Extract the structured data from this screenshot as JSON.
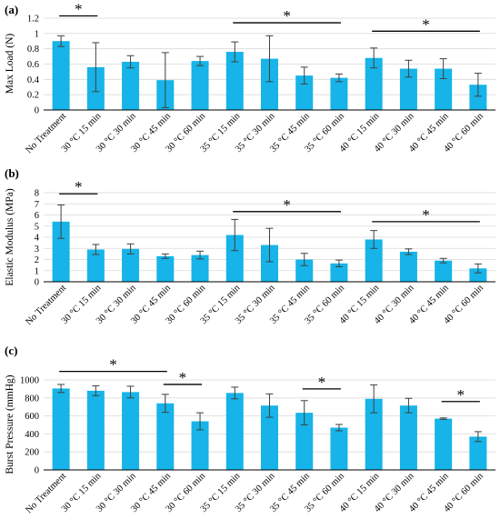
{
  "colors": {
    "bar": "#16b4e8",
    "axis": "#000000",
    "grid": "#d9d9d9",
    "error": "#404040"
  },
  "chart_data": [
    {
      "type": "bar",
      "panel_label": "(a)",
      "ylabel": "Max Load (N)",
      "categories": [
        "No Treatment",
        "30 °C 15 min",
        "30 °C 30 min",
        "30 °C 45 min",
        "30 °C 60 min",
        "35 °C 15 min",
        "35 °C 30 min",
        "35 °C 45 min",
        "35 °C 60 min",
        "40 °C 15 min",
        "40 °C 30 min",
        "40 °C 45 min",
        "40 °C 60 min"
      ],
      "values": [
        0.9,
        0.56,
        0.63,
        0.39,
        0.64,
        0.76,
        0.67,
        0.45,
        0.42,
        0.68,
        0.54,
        0.54,
        0.33
      ],
      "errors": [
        0.07,
        0.32,
        0.08,
        0.36,
        0.06,
        0.13,
        0.3,
        0.11,
        0.05,
        0.13,
        0.11,
        0.13,
        0.15
      ],
      "ylim": [
        0,
        1.2
      ],
      "yticks": [
        "0",
        "0.2",
        "0.4",
        "0.6",
        "0.8",
        "1",
        "1.2"
      ],
      "grid": true,
      "significance": [
        {
          "from": 0,
          "to": 1,
          "label": "*",
          "level": 1.23
        },
        {
          "from": 5,
          "to": 8,
          "label": "*",
          "level": 1.14
        },
        {
          "from": 9,
          "to": 12,
          "label": "*",
          "level": 1.03
        }
      ]
    },
    {
      "type": "bar",
      "panel_label": "(b)",
      "ylabel": "Elastic Modulus (MPa)",
      "categories": [
        "No Treatment",
        "30 °C 15 min",
        "30 °C 30 min",
        "30 °C 45 min",
        "30 °C 60 min",
        "35 °C 15 min",
        "35 °C 30 min",
        "35 °C 45 min",
        "35 °C 60 min",
        "40 °C 15 min",
        "40 °C 30 min",
        "40 °C 45 min",
        "40 °C 60 min"
      ],
      "values": [
        5.4,
        2.9,
        2.95,
        2.3,
        2.4,
        4.2,
        3.3,
        2.0,
        1.65,
        3.8,
        2.7,
        1.9,
        1.2
      ],
      "errors": [
        1.5,
        0.45,
        0.45,
        0.2,
        0.35,
        1.4,
        1.5,
        0.55,
        0.3,
        0.8,
        0.25,
        0.2,
        0.4
      ],
      "ylim": [
        0,
        8
      ],
      "yticks": [
        "0",
        "1",
        "2",
        "3",
        "4",
        "5",
        "6",
        "7",
        "8"
      ],
      "grid": true,
      "significance": [
        {
          "from": 0,
          "to": 1,
          "label": "*",
          "level": 7.9
        },
        {
          "from": 5,
          "to": 8,
          "label": "*",
          "level": 6.3
        },
        {
          "from": 9,
          "to": 12,
          "label": "*",
          "level": 5.4
        }
      ]
    },
    {
      "type": "bar",
      "panel_label": "(c)",
      "ylabel": "Burst Pressure (mmHg)",
      "categories": [
        "No Treatment",
        "30 °C 15 min",
        "30 °C 30 min",
        "30 °C 45 min",
        "30 °C 60 min",
        "35 °C 15 min",
        "35 °C 30 min",
        "35 °C 45 min",
        "35 °C 60 min",
        "40 °C 15 min",
        "40 °C 30 min",
        "40 °C 45 min",
        "40 °C 60 min"
      ],
      "values": [
        905,
        880,
        865,
        740,
        540,
        855,
        715,
        635,
        470,
        790,
        715,
        570,
        370
      ],
      "errors": [
        45,
        55,
        65,
        100,
        95,
        65,
        130,
        135,
        35,
        155,
        80,
        8,
        55
      ],
      "ylim": [
        0,
        1000
      ],
      "yticks": [
        "0",
        "200",
        "400",
        "600",
        "800",
        "1000"
      ],
      "grid": true,
      "significance": [
        {
          "from": 0,
          "to": 3,
          "label": "*",
          "level": 1095
        },
        {
          "from": 3,
          "to": 4,
          "label": "*",
          "level": 950
        },
        {
          "from": 7,
          "to": 8,
          "label": "*",
          "level": 900
        },
        {
          "from": 11,
          "to": 12,
          "label": "*",
          "level": 760
        }
      ]
    }
  ]
}
